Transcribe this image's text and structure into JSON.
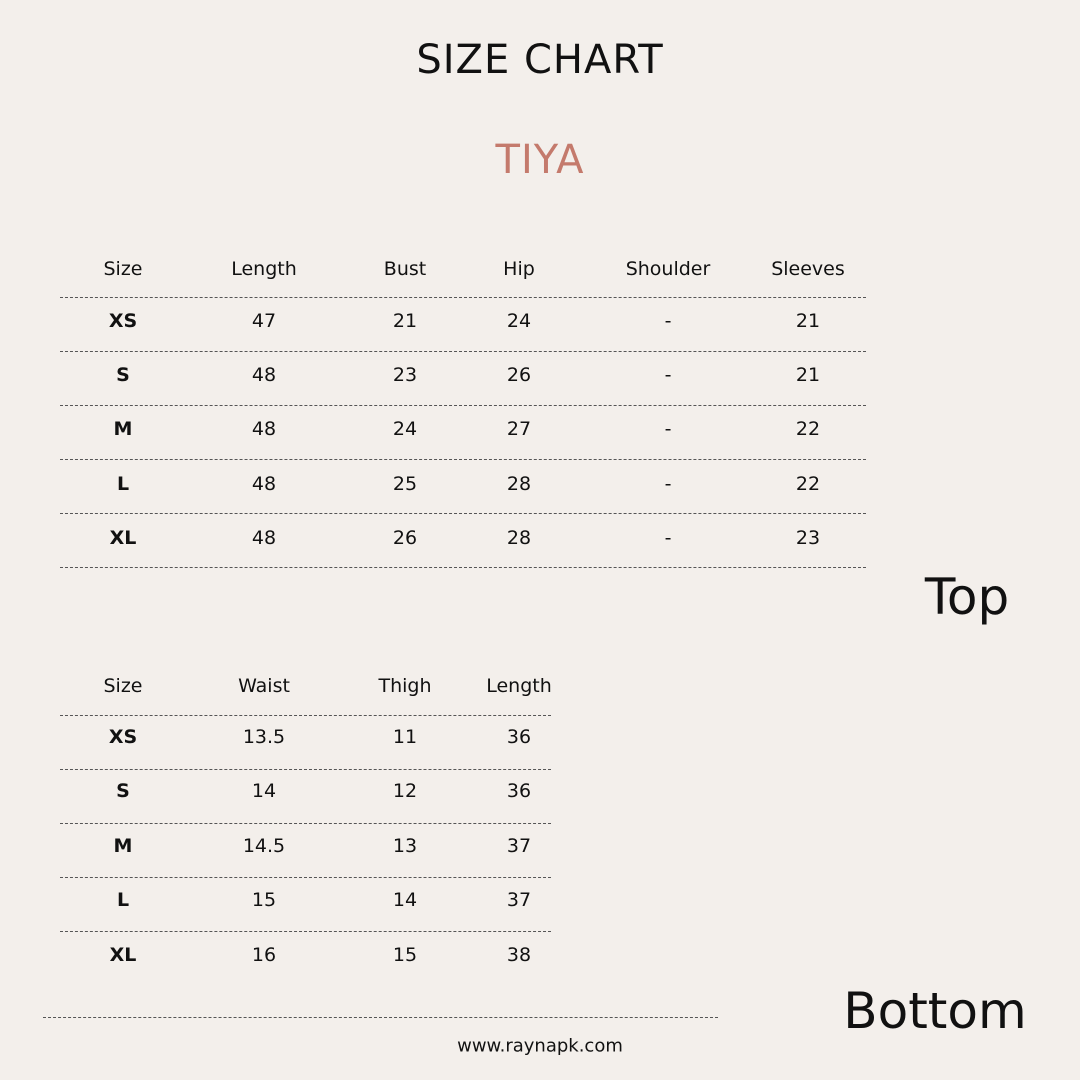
{
  "title": "SIZE CHART",
  "product": "TIYA",
  "colors": {
    "background": "#f3efeb",
    "accent": "#c47a6c",
    "text": "#111111"
  },
  "top": {
    "label": "Top",
    "headers": [
      "Size",
      "Length",
      "Bust",
      "Hip",
      "Shoulder",
      "Sleeves"
    ],
    "rows": [
      [
        "XS",
        "47",
        "21",
        "24",
        "-",
        "21"
      ],
      [
        "S",
        "48",
        "23",
        "26",
        "-",
        "21"
      ],
      [
        "M",
        "48",
        "24",
        "27",
        "-",
        "22"
      ],
      [
        "L",
        "48",
        "25",
        "28",
        "-",
        "22"
      ],
      [
        "XL",
        "48",
        "26",
        "28",
        "-",
        "23"
      ]
    ]
  },
  "bottom": {
    "label": "Bottom",
    "headers": [
      "Size",
      "Waist",
      "Thigh",
      "Length"
    ],
    "rows": [
      [
        "XS",
        "13.5",
        "11",
        "36"
      ],
      [
        "S",
        "14",
        "12",
        "36"
      ],
      [
        "M",
        "14.5",
        "13",
        "37"
      ],
      [
        "L",
        "15",
        "14",
        "37"
      ],
      [
        "XL",
        "16",
        "15",
        "38"
      ]
    ]
  },
  "footer": "www.raynapk.com"
}
